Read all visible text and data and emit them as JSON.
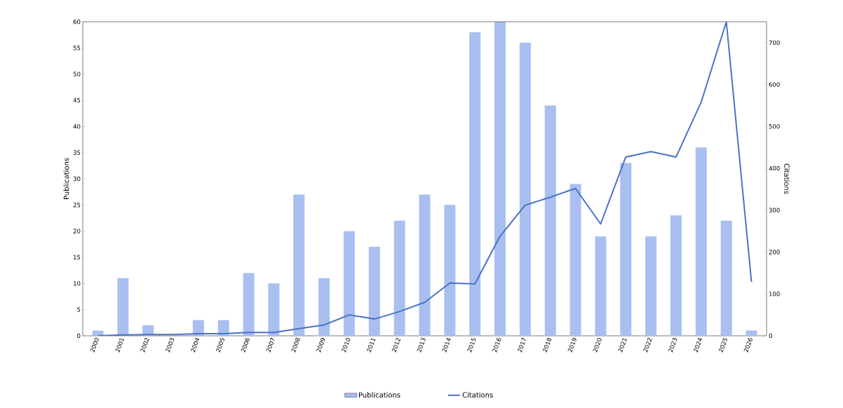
{
  "chart_data": {
    "type": "bar",
    "categories": [
      "2000",
      "2001",
      "2002",
      "2003",
      "2004",
      "2005",
      "2006",
      "2007",
      "2008",
      "2009",
      "2010",
      "2011",
      "2012",
      "2013",
      "2014",
      "2015",
      "2016",
      "2017",
      "2018",
      "2019",
      "2020",
      "2021",
      "2022",
      "2023",
      "2024",
      "2025",
      "2026"
    ],
    "series": [
      {
        "name": "Publications",
        "color": "#a9bff0",
        "values": [
          1,
          11,
          2,
          0,
          3,
          3,
          12,
          10,
          27,
          11,
          20,
          17,
          22,
          27,
          25,
          58,
          60,
          56,
          44,
          29,
          19,
          33,
          19,
          23,
          36,
          22,
          1
        ]
      },
      {
        "name": "Citations",
        "type": "line",
        "axis": "y2",
        "color": "#4a72c4",
        "values": [
          0,
          2,
          3,
          3,
          5,
          5,
          8,
          8,
          17,
          26,
          50,
          40,
          58,
          80,
          126,
          124,
          238,
          312,
          331,
          352,
          267,
          427,
          440,
          427,
          558,
          750,
          129
        ]
      }
    ],
    "ylabel": "Publications",
    "y2label": "Citations",
    "ylim": [
      0,
      60
    ],
    "yticks": [
      0,
      5,
      10,
      15,
      20,
      25,
      30,
      35,
      40,
      45,
      50,
      55,
      60
    ],
    "y2lim": [
      0,
      750
    ],
    "y2ticks": [
      0,
      100,
      200,
      300,
      400,
      500,
      600,
      700
    ],
    "legend": "bottom"
  }
}
